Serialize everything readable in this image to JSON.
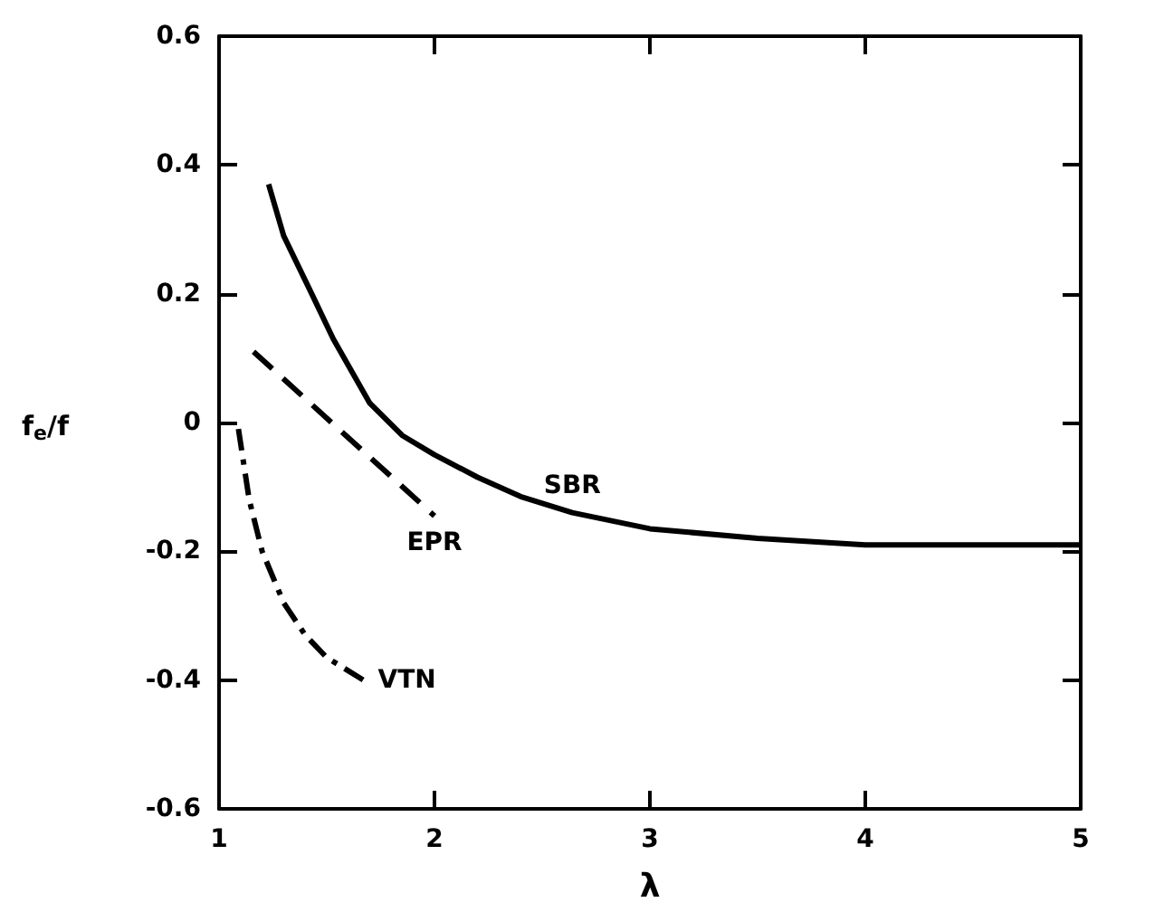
{
  "chart_data": {
    "type": "line",
    "xlabel": "λ",
    "ylabel": "f$_{e}$/f",
    "xlim": [
      1,
      5
    ],
    "xticks": [
      1,
      2,
      3,
      4,
      5
    ],
    "ylim": [
      -0.6,
      0.6
    ],
    "yticks": [
      -0.6,
      -0.4,
      -0.2,
      0,
      0.2,
      0.4,
      0.6
    ],
    "grid": false,
    "legend": false,
    "marker": "none",
    "series": [
      {
        "name": "SBR",
        "color": "#000000",
        "line_style": "solid",
        "x": [
          1.23,
          1.3,
          1.43,
          1.53,
          1.7,
          1.85,
          2.0,
          2.2,
          2.4,
          2.64,
          3.0,
          3.5,
          4.0,
          4.5,
          5.0
        ],
        "values": [
          0.37,
          0.29,
          0.2,
          0.13,
          0.03,
          -0.02,
          -0.05,
          -0.085,
          -0.115,
          -0.14,
          -0.165,
          -0.18,
          -0.19,
          -0.19,
          -0.19
        ]
      },
      {
        "name": "EPR",
        "color": "#000000",
        "line_style": "dashed",
        "x": [
          1.16,
          2.0
        ],
        "values": [
          0.11,
          -0.145
        ]
      },
      {
        "name": "VTN",
        "color": "#000000",
        "line_style": "dashdot",
        "x": [
          1.09,
          1.14,
          1.2,
          1.3,
          1.4,
          1.5,
          1.67
        ],
        "values": [
          -0.01,
          -0.12,
          -0.2,
          -0.28,
          -0.33,
          -0.365,
          -0.4
        ]
      }
    ]
  }
}
